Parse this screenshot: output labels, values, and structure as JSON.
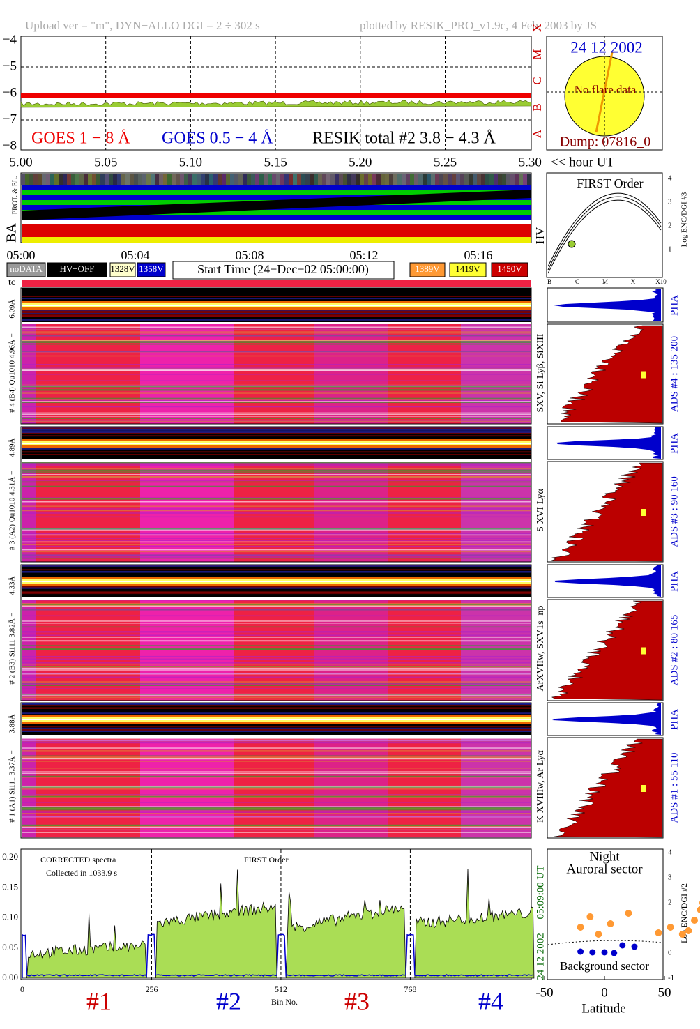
{
  "header": {
    "left": "Upload ver = \"m\", DYN−ALLO DGI =   2 ÷ 302 s",
    "right": "plotted by RESIK_PRO_v1.9c, 4 Feb. 2003 by JS"
  },
  "goes": {
    "yticks": [
      "−4",
      "−5",
      "−6",
      "−7",
      "−8"
    ],
    "xticks": [
      "5.00",
      "5.05",
      "5.10",
      "5.15",
      "5.20",
      "5.25",
      "5.30"
    ],
    "xunit": "<< hour UT",
    "classes": [
      "X",
      "M",
      "C",
      "B",
      "A"
    ],
    "legend": [
      "GOES 1 − 8 Å",
      "GOES 0.5 − 4 Å",
      "RESIK total #2  3.8 − 4.3 Å"
    ]
  },
  "sun": {
    "date": "24 12 2002",
    "status": "No flare data",
    "dump": "Dump: 07816_0"
  },
  "housekeeping": {
    "prot_label": "PROT. & EL.",
    "ba_label": "BA",
    "time_ticks": [
      "05:00",
      "05:04",
      "05:08",
      "05:12",
      "05:16"
    ],
    "legend": [
      "noDATA",
      "HV−OFF",
      "1328V",
      "1358V",
      "1389V",
      "1419V",
      "1450V"
    ],
    "start_time": "Start Time (24−Dec−02 05:00:00)",
    "tc": "tc"
  },
  "hv": {
    "label": "HV",
    "title": "FIRST Order",
    "y_label": "Log ENC/DGI #3",
    "yticks": [
      "1",
      "2",
      "3",
      "4"
    ],
    "xticks": [
      "B",
      "C",
      "M",
      "X",
      "X10"
    ]
  },
  "channels": [
    {
      "left_top": "6.09Å",
      "left": "# 4 (B4) Qu1010 4.96Å −",
      "lines": "SXV, Si Lyβ, SiXIII",
      "pha": "PHA",
      "ads": "ADS #4 :   135 200"
    },
    {
      "left_top": "4.89Å",
      "left": "# 3 (A2) Qu1010  4.31Å −",
      "lines": "S XVI Lyα",
      "pha": "PHA",
      "ads": "ADS #3 :   90 160"
    },
    {
      "left_top": "4.33Å",
      "left": "# 2 (B3) Si111  3.82Å −",
      "lines": "ArXVIIw, SXV1s−np",
      "pha": "PHA",
      "ads": "ADS #2 :   80 165"
    },
    {
      "left_top": "3.88Å",
      "left": "# 1 (A1) Si111  3.37Å −",
      "lines": "K XVIIIw, Ar Lyα",
      "pha": "PHA",
      "ads": "ADS #1 :   55 110"
    }
  ],
  "spectrum": {
    "yticks": [
      "0.00",
      "0.05",
      "0.10",
      "0.15",
      "0.20"
    ],
    "xticks": [
      "0",
      "256",
      "512",
      "768"
    ],
    "x_label": "Bin No.",
    "note1": "CORRECTED spectra",
    "note2": "Collected in  1033.9 s",
    "note3": "FIRST Order",
    "time": "05:09:00 UT",
    "date": "24 12 2002",
    "detectors": [
      "#1",
      "#2",
      "#3",
      "#4"
    ]
  },
  "orbit": {
    "night": "Night",
    "top": "Auroral sector",
    "bottom": "Background sector",
    "x_label": "Latitude",
    "xticks": [
      "-50",
      "0",
      "50"
    ],
    "y_label": "Log ENC/DGI #2",
    "yticks": [
      "-1",
      "0",
      "1",
      "2",
      "3",
      "4"
    ]
  }
}
